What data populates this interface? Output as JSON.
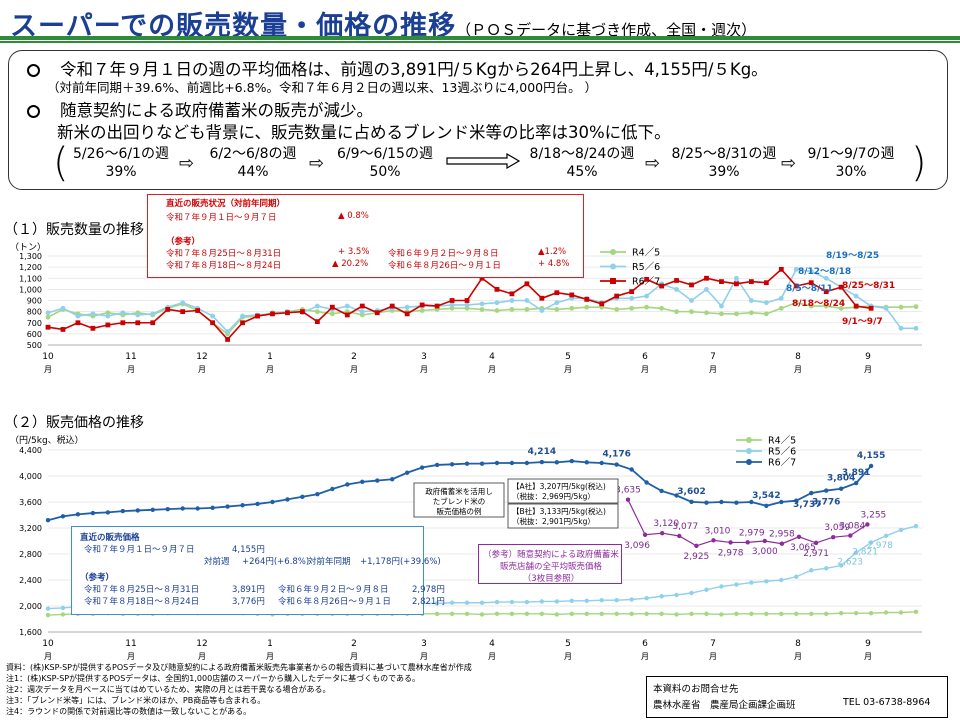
{
  "header": {
    "title": "スーパーでの販売数量・価格の推移",
    "subtitle": "（ＰＯＳデータに基づき作成、全国・週次）"
  },
  "summary": {
    "line1": "令和７年９月１日の週の平均価格は、前週の3,891円/５Kgから264円上昇し、4,155円/５Kg。",
    "line2": "（対前年同期＋39.6%、前週比+6.8%。令和７年６月２日の週以来、13週ぶりに4,000円台。 ）",
    "line3": "随意契約による政府備蓄米の販売が減少。",
    "line4": "新米の出回りなども背景に、販売数量に占めるブレンド米等の比率は30%に低下。",
    "weeks": [
      {
        "label": "5/26～6/1の週",
        "pct": "39%"
      },
      {
        "label": "6/2～6/8の週",
        "pct": "44%"
      },
      {
        "label": "6/9～6/15の週",
        "pct": "50%"
      },
      {
        "label": "8/18～8/24の週",
        "pct": "45%"
      },
      {
        "label": "8/25～8/31の週",
        "pct": "39%"
      },
      {
        "label": "9/1～9/7の週",
        "pct": "30%"
      }
    ],
    "arrow": "⇨"
  },
  "section1": {
    "title": "（１）販売数量の推移",
    "unit": "（トン）"
  },
  "section2": {
    "title": "（２）販売価格の推移",
    "unit": "（円/5kg、税込）"
  },
  "redbox": {
    "h1": "直近の販売状況（対前年同期）",
    "r1_label": "令和７年９月１日～９月７日",
    "r1_val": "▲ 0.8%",
    "h2": "（参考）",
    "r2_label": "令和７年８月25日～８月31日",
    "r2_val": "+ 3.5%",
    "r2_label2": "令和６年９月２日～９月８日",
    "r2_val2": "▲1.2%",
    "r3_label": "令和７年８月18日～８月24日",
    "r3_val": "▲ 20.2%",
    "r3_label2": "令和６年８月26日～９月１日",
    "r3_val2": "+ 4.8%"
  },
  "bluebox": {
    "h1": "直近の販売価格",
    "r1_label": "令和７年９月１日～９月７日",
    "r1_val": "4,155円",
    "r2_a": "対前週",
    "r2_b": "+264円(+6.8%)",
    "r2_c": "対前年同期",
    "r2_d": "+1,178円(+39.6%)",
    "h2": "（参考）",
    "r3_label": "令和７年８月25日～８月31日",
    "r3_val": "3,891円",
    "r3_label2": "令和６年９月２日～９月８日",
    "r3_val2": "2,978円",
    "r4_label": "令和７年８月18日～８月24日",
    "r4_val": "3,776円",
    "r4_label2": "令和６年８月26日～９月１日",
    "r4_val2": "2,821円"
  },
  "purplebox": {
    "l1": "（参考）随意契約による政府備蓄米",
    "l2": "販売店舗の全平均販売価格",
    "l3": "（3枚目参照）"
  },
  "notes": [
    "資料：(株)KSP-SPが提供するPOSデータ及び随意契約による政府備蓄米販売先事業者からの報告資料に基づいて農林水産省が作成",
    "注1：(株)KSP-SPが提供するPOSデータは、全国約1,000店舗のスーパーから購入したデータに基づくものである。",
    "注2：週次データを月ベースに当てはめているため、実際の月とは若干異なる場合がある。",
    "注3：「ブレンド米等」には、ブレンド米のほか、PB商品等も含まれる。",
    "注4：ラウンドの関係で対前週比等の数値は一致しないことがある。"
  ],
  "contact": {
    "l1": "本資料のお問合せ先",
    "l2": "農林水産省　農産局企画課企画班",
    "tel": "TEL 03-6738-8964"
  },
  "colors": {
    "r4": "#a6d67f",
    "r5": "#8fd0ea",
    "r6_qty": "#cc0000",
    "r6_price": "#1f5fa8",
    "purple": "#8e2a9e",
    "title": "#1a3f95",
    "rule": "#2e8b3a"
  },
  "chart_data": [
    {
      "type": "line",
      "title": "販売数量の推移",
      "ylabel": "（トン）",
      "ylim": [
        500,
        1300
      ],
      "yticks": [
        500,
        600,
        700,
        800,
        900,
        1000,
        1100,
        1200,
        1300
      ],
      "month_ticks": [
        "10\n月",
        "11\n月",
        "12\n月",
        "1\n月",
        "2\n月",
        "3\n月",
        "4\n月",
        "5\n月",
        "6\n月",
        "7\n月",
        "8\n月",
        "9\n月"
      ],
      "legend_position": "top-right",
      "series": [
        {
          "name": "R4／5",
          "color": "#a6d67f",
          "values": [
            750,
            820,
            780,
            760,
            790,
            770,
            790,
            770,
            830,
            870,
            810,
            700,
            600,
            750,
            760,
            790,
            800,
            820,
            800,
            780,
            800,
            770,
            790,
            810,
            800,
            810,
            820,
            830,
            830,
            820,
            810,
            820,
            820,
            830,
            820,
            830,
            840,
            840,
            820,
            830,
            840,
            830,
            800,
            800,
            790,
            780,
            780,
            790,
            780,
            830,
            880,
            850,
            850,
            830,
            840,
            850,
            840,
            840,
            845
          ]
        },
        {
          "name": "R5／6",
          "color": "#8fd0ea",
          "values": [
            790,
            830,
            760,
            780,
            760,
            790,
            770,
            780,
            840,
            880,
            830,
            760,
            620,
            760,
            770,
            780,
            800,
            790,
            850,
            820,
            850,
            800,
            810,
            830,
            840,
            850,
            850,
            860,
            860,
            870,
            880,
            900,
            900,
            810,
            880,
            920,
            920,
            880,
            920,
            920,
            940,
            1050,
            1000,
            900,
            1000,
            850,
            1100,
            900,
            880,
            920,
            1180,
            1160,
            1100,
            1020,
            940,
            850,
            830,
            650,
            650
          ]
        },
        {
          "name": "R6／7",
          "color": "#cc0000",
          "values": [
            660,
            640,
            700,
            650,
            680,
            700,
            700,
            700,
            820,
            800,
            810,
            700,
            550,
            700,
            760,
            780,
            790,
            800,
            710,
            840,
            770,
            850,
            790,
            850,
            780,
            860,
            850,
            900,
            900,
            1100,
            1000,
            960,
            1050,
            920,
            970,
            950,
            910,
            870,
            940,
            980,
            1090,
            1030,
            1080,
            1040,
            1100,
            1070,
            1050,
            1070,
            1060,
            1180,
            1030,
            1060,
            980,
            1020,
            850,
            830
          ]
        }
      ],
      "annotations": [
        "8/5～8/11",
        "8/19～8/25",
        "8/12～8/18",
        "8/25～8/31",
        "8/18～8/24",
        "9/1～9/7"
      ]
    },
    {
      "type": "line",
      "title": "販売価格の推移",
      "ylabel": "（円/5kg、税込）",
      "ylim": [
        1600,
        4400
      ],
      "yticks": [
        1600,
        2000,
        2400,
        2800,
        3200,
        3600,
        4000,
        4400
      ],
      "month_ticks": [
        "10\n月",
        "11\n月",
        "12\n月",
        "1\n月",
        "2\n月",
        "3\n月",
        "4\n月",
        "5\n月",
        "6\n月",
        "7\n月",
        "8\n月",
        "9\n月"
      ],
      "legend_position": "top-right",
      "series": [
        {
          "name": "R4／5",
          "color": "#a6d67f",
          "values": [
            1860,
            1870,
            1880,
            1880,
            1890,
            1880,
            1880,
            1880,
            1890,
            1900,
            1890,
            1910,
            1950,
            1890,
            1880,
            1870,
            1880,
            1880,
            1880,
            1880,
            1880,
            1880,
            1880,
            1880,
            1880,
            1880,
            1880,
            1880,
            1880,
            1870,
            1880,
            1880,
            1880,
            1880,
            1870,
            1880,
            1880,
            1880,
            1880,
            1880,
            1880,
            1880,
            1870,
            1880,
            1880,
            1870,
            1880,
            1880,
            1880,
            1880,
            1880,
            1880,
            1880,
            1890,
            1890,
            1890,
            1900,
            1900,
            1910
          ]
        },
        {
          "name": "R5／6",
          "color": "#8fd0ea",
          "values": [
            1960,
            1970,
            1990,
            2000,
            2000,
            2000,
            2010,
            2010,
            2020,
            2020,
            2010,
            2030,
            2050,
            2030,
            2020,
            2020,
            2020,
            2020,
            2020,
            2030,
            2030,
            2030,
            2030,
            2040,
            2040,
            2040,
            2040,
            2050,
            2050,
            2050,
            2060,
            2060,
            2060,
            2070,
            2070,
            2080,
            2080,
            2090,
            2090,
            2100,
            2120,
            2150,
            2170,
            2200,
            2250,
            2300,
            2330,
            2360,
            2380,
            2400,
            2450,
            2550,
            2580,
            2623,
            2821,
            2978,
            3080,
            3170,
            3230
          ]
        },
        {
          "name": "R6／7",
          "color": "#1f5fa8",
          "values": [
            3320,
            3380,
            3410,
            3430,
            3440,
            3460,
            3470,
            3480,
            3490,
            3500,
            3500,
            3510,
            3530,
            3550,
            3570,
            3600,
            3640,
            3680,
            3720,
            3800,
            3870,
            3910,
            3930,
            3950,
            4050,
            4130,
            4170,
            4180,
            4190,
            4190,
            4200,
            4200,
            4200,
            4214,
            4210,
            4230,
            4210,
            4200,
            4176,
            4100,
            3900,
            3770,
            3700,
            3602,
            3590,
            3600,
            3590,
            3600,
            3542,
            3600,
            3620,
            3737,
            3776,
            3804,
            3891,
            4155
          ]
        },
        {
          "name": "政府備蓄米",
          "color": "#8e2a9e",
          "values": [
            3635,
            3096,
            3120,
            3077,
            2925,
            3010,
            2978,
            2979,
            3000,
            2958,
            3065,
            2971,
            3059,
            3084,
            3255
          ]
        }
      ],
      "data_labels": [
        {
          "series": "R6／7",
          "labels": [
            "4,214",
            "4,176",
            "3,602",
            "3,542",
            "3,737",
            "3,804",
            "3,776",
            "3,891",
            "4,155"
          ]
        },
        {
          "series": "R5／6",
          "labels": [
            "2,623",
            "2,821",
            "2,978"
          ]
        },
        {
          "series": "政府備蓄米",
          "labels": [
            "3,635",
            "3,096",
            "3,120",
            "3,077",
            "2,925",
            "3,010",
            "2,978",
            "2,979",
            "3,000",
            "2,958",
            "3,065",
            "2,971",
            "3,059",
            "3,084",
            "3,255"
          ]
        }
      ],
      "inset_labels": {
        "gov": [
          "政府備蓄米を活用し",
          "たブレンド米の",
          "販売価格の例"
        ],
        "a": [
          "【A社】3,207円/5kg(税込)",
          "（税抜：2,969円/5kg）"
        ],
        "b": [
          "【B社】3,133円/5kg(税込)",
          "（税抜：2,901円/5kg）"
        ]
      }
    }
  ]
}
